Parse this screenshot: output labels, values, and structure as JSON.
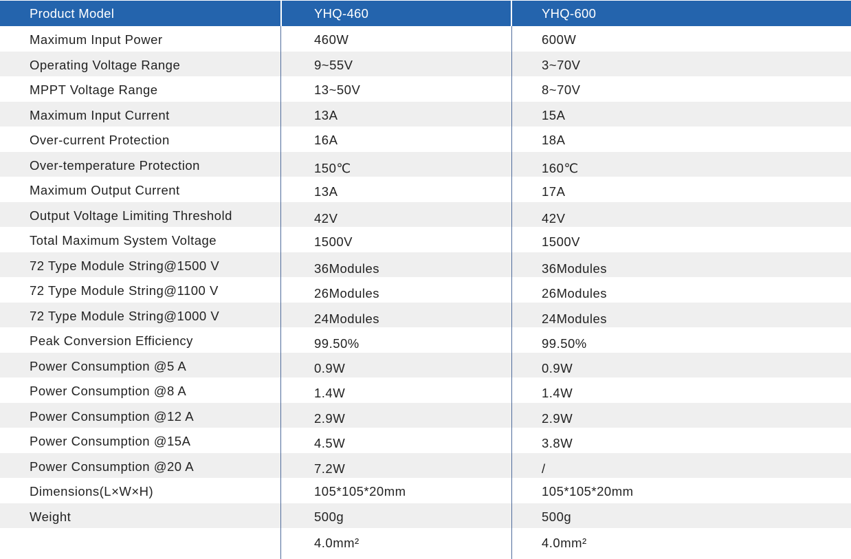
{
  "table": {
    "header": [
      "Product Model",
      "YHQ-460",
      "YHQ-600"
    ],
    "rows": [
      [
        "Maximum Input Power",
        "460W",
        "600W"
      ],
      [
        "Operating Voltage Range",
        "9~55V",
        "3~70V"
      ],
      [
        "MPPT Voltage Range",
        "13~50V",
        "8~70V"
      ],
      [
        "Maximum Input Current",
        "13A",
        "15A"
      ],
      [
        "Over-current Protection",
        "16A",
        "18A"
      ],
      [
        "Over-temperature Protection",
        "150℃",
        "160℃"
      ],
      [
        "Maximum Output Current",
        "13A",
        "17A"
      ],
      [
        "Output Voltage Limiting Threshold",
        "42V",
        "42V"
      ],
      [
        "Total Maximum System Voltage",
        "1500V",
        "1500V"
      ],
      [
        "72 Type Module String@1500 V",
        "36Modules",
        "36Modules"
      ],
      [
        "72 Type Module String@1100 V",
        "26Modules",
        "26Modules"
      ],
      [
        "72 Type Module String@1000 V",
        "24Modules",
        "24Modules"
      ],
      [
        "Peak Conversion Efficiency",
        "99.50%",
        "99.50%"
      ],
      [
        "Power Consumption @5 A",
        "0.9W",
        "0.9W"
      ],
      [
        "Power Consumption @8 A",
        "1.4W",
        "1.4W"
      ],
      [
        "Power Consumption @12 A",
        "2.9W",
        "2.9W"
      ],
      [
        "Power Consumption @15A",
        "4.5W",
        "3.8W"
      ],
      [
        "Power Consumption @20 A",
        "7.2W",
        "/"
      ],
      [
        "Dimensions(L×W×H)",
        "105*105*20mm",
        "105*105*20mm"
      ],
      [
        "Weight",
        "500g",
        "500g"
      ],
      [
        "",
        "4.0mm²",
        "4.0mm²"
      ]
    ]
  },
  "colors": {
    "header_bg": "#2464ad",
    "header_text": "#ffffff",
    "row_shade": "#efefef",
    "divider": "#4d6a9a"
  }
}
